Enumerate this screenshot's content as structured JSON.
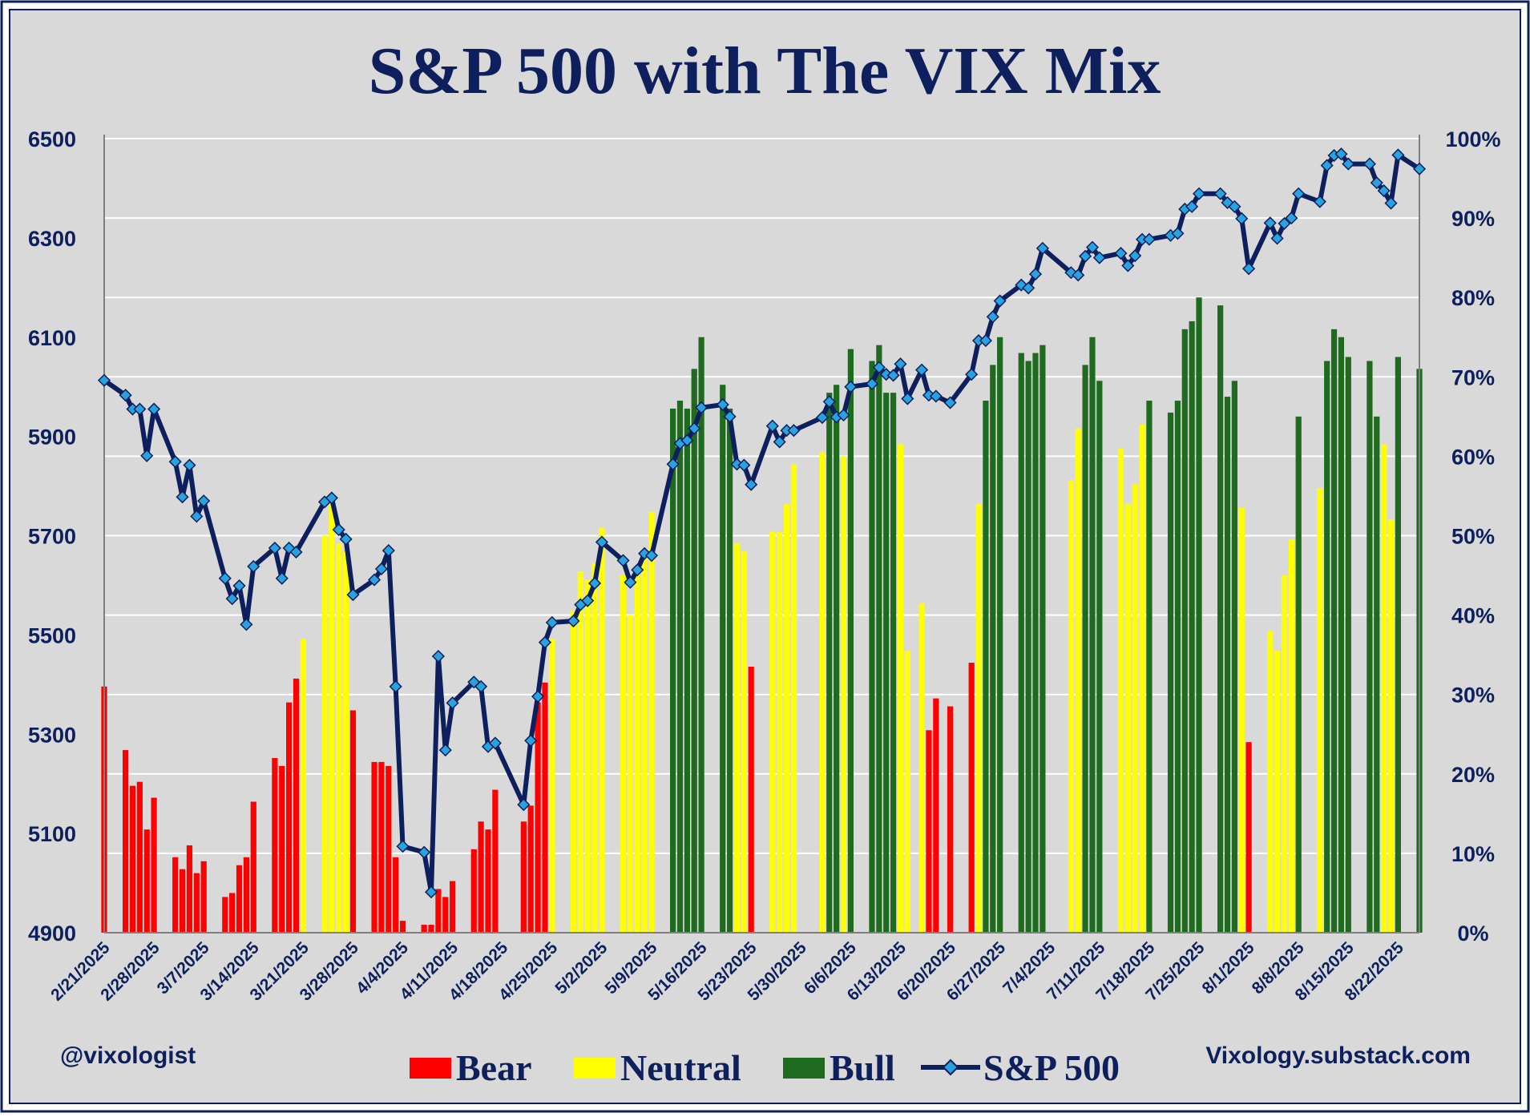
{
  "chart_data": {
    "type": "bar+line",
    "title": "S&P 500 with The VIX Mix",
    "left_axis": {
      "ticks": [
        "6500",
        "6300",
        "6100",
        "5900",
        "5700",
        "5500",
        "5300",
        "5100",
        "4900"
      ],
      "ylim": [
        4900,
        6500
      ]
    },
    "right_axis": {
      "ticks": [
        "100%",
        "90%",
        "80%",
        "70%",
        "60%",
        "50%",
        "40%",
        "30%",
        "20%",
        "10%",
        "0%"
      ],
      "ylim": [
        0,
        100
      ]
    },
    "grid": true,
    "x_tick_labels": [
      "2/21/2025",
      "2/28/2025",
      "3/7/2025",
      "3/14/2025",
      "3/21/2025",
      "3/28/2025",
      "4/4/2025",
      "4/11/2025",
      "4/18/2025",
      "4/25/2025",
      "5/2/2025",
      "5/9/2025",
      "5/16/2025",
      "5/23/2025",
      "5/30/2025",
      "6/6/2025",
      "6/13/2025",
      "6/20/2025",
      "6/27/2025",
      "7/4/2025",
      "7/11/2025",
      "7/18/2025",
      "7/25/2025",
      "8/1/2025",
      "8/8/2025",
      "8/15/2025",
      "8/22/2025"
    ],
    "regime_colors": {
      "Bear": "#ff0000",
      "Neutral": "#ffff00",
      "Bull": "#1e6a1e"
    },
    "line_color": "#0d1f5c",
    "marker_color": "#29a3e0",
    "legend": [
      {
        "name": "Bear",
        "color": "#ff0000",
        "kind": "bar"
      },
      {
        "name": "Neutral",
        "color": "#ffff00",
        "kind": "bar"
      },
      {
        "name": "Bull",
        "color": "#1e6a1e",
        "kind": "bar"
      },
      {
        "name": "S&P 500",
        "color": "#0d1f5c",
        "kind": "line"
      }
    ],
    "legend_position": "bottom",
    "bars": [
      {
        "d": 0,
        "v": 31,
        "r": "Bear"
      },
      {
        "d": 3,
        "v": 23,
        "r": "Bear"
      },
      {
        "d": 4,
        "v": 18.5,
        "r": "Bear"
      },
      {
        "d": 5,
        "v": 19,
        "r": "Bear"
      },
      {
        "d": 6,
        "v": 13,
        "r": "Bear"
      },
      {
        "d": 7,
        "v": 17,
        "r": "Bear"
      },
      {
        "d": 10,
        "v": 9.5,
        "r": "Bear"
      },
      {
        "d": 11,
        "v": 8,
        "r": "Bear"
      },
      {
        "d": 12,
        "v": 11,
        "r": "Bear"
      },
      {
        "d": 13,
        "v": 7.5,
        "r": "Bear"
      },
      {
        "d": 14,
        "v": 9,
        "r": "Bear"
      },
      {
        "d": 17,
        "v": 4.5,
        "r": "Bear"
      },
      {
        "d": 18,
        "v": 5,
        "r": "Bear"
      },
      {
        "d": 19,
        "v": 8.5,
        "r": "Bear"
      },
      {
        "d": 20,
        "v": 9.5,
        "r": "Bear"
      },
      {
        "d": 21,
        "v": 16.5,
        "r": "Bear"
      },
      {
        "d": 24,
        "v": 22,
        "r": "Bear"
      },
      {
        "d": 25,
        "v": 21,
        "r": "Bear"
      },
      {
        "d": 26,
        "v": 29,
        "r": "Bear"
      },
      {
        "d": 27,
        "v": 32,
        "r": "Bear"
      },
      {
        "d": 28,
        "v": 37,
        "r": "Neutral"
      },
      {
        "d": 31,
        "v": 50,
        "r": "Neutral"
      },
      {
        "d": 32,
        "v": 54,
        "r": "Neutral"
      },
      {
        "d": 33,
        "v": 49,
        "r": "Neutral"
      },
      {
        "d": 34,
        "v": 48,
        "r": "Neutral"
      },
      {
        "d": 35,
        "v": 28,
        "r": "Bear"
      },
      {
        "d": 38,
        "v": 21.5,
        "r": "Bear"
      },
      {
        "d": 39,
        "v": 21.5,
        "r": "Bear"
      },
      {
        "d": 40,
        "v": 21,
        "r": "Bear"
      },
      {
        "d": 41,
        "v": 9.5,
        "r": "Bear"
      },
      {
        "d": 42,
        "v": 1.5,
        "r": "Bear"
      },
      {
        "d": 45,
        "v": 1,
        "r": "Bear"
      },
      {
        "d": 46,
        "v": 1,
        "r": "Bear"
      },
      {
        "d": 47,
        "v": 5.5,
        "r": "Bear"
      },
      {
        "d": 48,
        "v": 4.5,
        "r": "Bear"
      },
      {
        "d": 49,
        "v": 6.5,
        "r": "Bear"
      },
      {
        "d": 52,
        "v": 10.5,
        "r": "Bear"
      },
      {
        "d": 53,
        "v": 14,
        "r": "Bear"
      },
      {
        "d": 54,
        "v": 13,
        "r": "Bear"
      },
      {
        "d": 55,
        "v": 18,
        "r": "Bear"
      },
      {
        "d": 59,
        "v": 14,
        "r": "Bear"
      },
      {
        "d": 60,
        "v": 16,
        "r": "Bear"
      },
      {
        "d": 61,
        "v": 29,
        "r": "Bear"
      },
      {
        "d": 62,
        "v": 31.5,
        "r": "Bear"
      },
      {
        "d": 63,
        "v": 37,
        "r": "Neutral"
      },
      {
        "d": 66,
        "v": 40.5,
        "r": "Neutral"
      },
      {
        "d": 67,
        "v": 45.5,
        "r": "Neutral"
      },
      {
        "d": 68,
        "v": 44.5,
        "r": "Neutral"
      },
      {
        "d": 69,
        "v": 46.5,
        "r": "Neutral"
      },
      {
        "d": 70,
        "v": 51,
        "r": "Neutral"
      },
      {
        "d": 73,
        "v": 45,
        "r": "Neutral"
      },
      {
        "d": 74,
        "v": 40,
        "r": "Neutral"
      },
      {
        "d": 75,
        "v": 45,
        "r": "Neutral"
      },
      {
        "d": 76,
        "v": 48,
        "r": "Neutral"
      },
      {
        "d": 77,
        "v": 53,
        "r": "Neutral"
      },
      {
        "d": 80,
        "v": 66,
        "r": "Bull"
      },
      {
        "d": 81,
        "v": 67,
        "r": "Bull"
      },
      {
        "d": 82,
        "v": 66,
        "r": "Bull"
      },
      {
        "d": 83,
        "v": 71,
        "r": "Bull"
      },
      {
        "d": 84,
        "v": 75,
        "r": "Bull"
      },
      {
        "d": 87,
        "v": 69,
        "r": "Bull"
      },
      {
        "d": 88,
        "v": 66,
        "r": "Bull"
      },
      {
        "d": 89,
        "v": 49,
        "r": "Neutral"
      },
      {
        "d": 90,
        "v": 48,
        "r": "Neutral"
      },
      {
        "d": 91,
        "v": 33.5,
        "r": "Bear"
      },
      {
        "d": 94,
        "v": 50.5,
        "r": "Neutral"
      },
      {
        "d": 95,
        "v": 50.5,
        "r": "Neutral"
      },
      {
        "d": 96,
        "v": 54,
        "r": "Neutral"
      },
      {
        "d": 97,
        "v": 59,
        "r": "Neutral"
      },
      {
        "d": 101,
        "v": 60.5,
        "r": "Neutral"
      },
      {
        "d": 102,
        "v": 68,
        "r": "Bull"
      },
      {
        "d": 103,
        "v": 69,
        "r": "Bull"
      },
      {
        "d": 104,
        "v": 60,
        "r": "Neutral"
      },
      {
        "d": 105,
        "v": 73.5,
        "r": "Bull"
      },
      {
        "d": 108,
        "v": 72,
        "r": "Bull"
      },
      {
        "d": 109,
        "v": 74,
        "r": "Bull"
      },
      {
        "d": 110,
        "v": 68,
        "r": "Bull"
      },
      {
        "d": 111,
        "v": 68,
        "r": "Bull"
      },
      {
        "d": 112,
        "v": 61.5,
        "r": "Neutral"
      },
      {
        "d": 113,
        "v": 35.5,
        "r": "Neutral"
      },
      {
        "d": 115,
        "v": 41.5,
        "r": "Neutral"
      },
      {
        "d": 116,
        "v": 25.5,
        "r": "Bear"
      },
      {
        "d": 117,
        "v": 29.5,
        "r": "Bear"
      },
      {
        "d": 119,
        "v": 28.5,
        "r": "Bear"
      },
      {
        "d": 122,
        "v": 34,
        "r": "Bear"
      },
      {
        "d": 123,
        "v": 54,
        "r": "Neutral"
      },
      {
        "d": 124,
        "v": 67,
        "r": "Bull"
      },
      {
        "d": 125,
        "v": 71.5,
        "r": "Bull"
      },
      {
        "d": 126,
        "v": 75,
        "r": "Bull"
      },
      {
        "d": 129,
        "v": 73,
        "r": "Bull"
      },
      {
        "d": 130,
        "v": 72,
        "r": "Bull"
      },
      {
        "d": 131,
        "v": 73,
        "r": "Bull"
      },
      {
        "d": 132,
        "v": 74,
        "r": "Bull"
      },
      {
        "d": 136,
        "v": 57,
        "r": "Neutral"
      },
      {
        "d": 137,
        "v": 63.5,
        "r": "Neutral"
      },
      {
        "d": 138,
        "v": 71.5,
        "r": "Bull"
      },
      {
        "d": 139,
        "v": 75,
        "r": "Bull"
      },
      {
        "d": 140,
        "v": 69.5,
        "r": "Bull"
      },
      {
        "d": 143,
        "v": 61,
        "r": "Neutral"
      },
      {
        "d": 144,
        "v": 54,
        "r": "Neutral"
      },
      {
        "d": 145,
        "v": 56.5,
        "r": "Neutral"
      },
      {
        "d": 146,
        "v": 64,
        "r": "Neutral"
      },
      {
        "d": 147,
        "v": 67,
        "r": "Bull"
      },
      {
        "d": 150,
        "v": 65.5,
        "r": "Bull"
      },
      {
        "d": 151,
        "v": 67,
        "r": "Bull"
      },
      {
        "d": 152,
        "v": 76,
        "r": "Bull"
      },
      {
        "d": 153,
        "v": 77,
        "r": "Bull"
      },
      {
        "d": 154,
        "v": 80,
        "r": "Bull"
      },
      {
        "d": 157,
        "v": 79,
        "r": "Bull"
      },
      {
        "d": 158,
        "v": 67.5,
        "r": "Bull"
      },
      {
        "d": 159,
        "v": 69.5,
        "r": "Bull"
      },
      {
        "d": 160,
        "v": 53.5,
        "r": "Neutral"
      },
      {
        "d": 161,
        "v": 24,
        "r": "Bear"
      },
      {
        "d": 164,
        "v": 38,
        "r": "Neutral"
      },
      {
        "d": 165,
        "v": 35.5,
        "r": "Neutral"
      },
      {
        "d": 166,
        "v": 45,
        "r": "Neutral"
      },
      {
        "d": 167,
        "v": 49.5,
        "r": "Neutral"
      },
      {
        "d": 168,
        "v": 65,
        "r": "Bull"
      },
      {
        "d": 171,
        "v": 56,
        "r": "Neutral"
      },
      {
        "d": 172,
        "v": 72,
        "r": "Bull"
      },
      {
        "d": 173,
        "v": 76,
        "r": "Bull"
      },
      {
        "d": 174,
        "v": 75,
        "r": "Bull"
      },
      {
        "d": 175,
        "v": 72.5,
        "r": "Bull"
      },
      {
        "d": 178,
        "v": 72,
        "r": "Bull"
      },
      {
        "d": 179,
        "v": 65,
        "r": "Bull"
      },
      {
        "d": 180,
        "v": 61.5,
        "r": "Neutral"
      },
      {
        "d": 181,
        "v": 52,
        "r": "Neutral"
      },
      {
        "d": 182,
        "v": 72.5,
        "r": "Bull"
      },
      {
        "d": 185,
        "v": 71,
        "r": "Bull"
      }
    ],
    "sp500": [
      {
        "d": 0,
        "v": 6013
      },
      {
        "d": 3,
        "v": 5983
      },
      {
        "d": 4,
        "v": 5955
      },
      {
        "d": 5,
        "v": 5955
      },
      {
        "d": 6,
        "v": 5861
      },
      {
        "d": 7,
        "v": 5955
      },
      {
        "d": 10,
        "v": 5849
      },
      {
        "d": 11,
        "v": 5778
      },
      {
        "d": 12,
        "v": 5842
      },
      {
        "d": 13,
        "v": 5739
      },
      {
        "d": 14,
        "v": 5770
      },
      {
        "d": 17,
        "v": 5614
      },
      {
        "d": 18,
        "v": 5573
      },
      {
        "d": 19,
        "v": 5599
      },
      {
        "d": 20,
        "v": 5521
      },
      {
        "d": 21,
        "v": 5638
      },
      {
        "d": 24,
        "v": 5675
      },
      {
        "d": 25,
        "v": 5614
      },
      {
        "d": 26,
        "v": 5675
      },
      {
        "d": 27,
        "v": 5667
      },
      {
        "d": 31,
        "v": 5768
      },
      {
        "d": 32,
        "v": 5776
      },
      {
        "d": 33,
        "v": 5712
      },
      {
        "d": 34,
        "v": 5693
      },
      {
        "d": 35,
        "v": 5581
      },
      {
        "d": 38,
        "v": 5611
      },
      {
        "d": 39,
        "v": 5633
      },
      {
        "d": 40,
        "v": 5670
      },
      {
        "d": 41,
        "v": 5396
      },
      {
        "d": 42,
        "v": 5074
      },
      {
        "d": 45,
        "v": 5062
      },
      {
        "d": 46,
        "v": 4982
      },
      {
        "d": 47,
        "v": 5457
      },
      {
        "d": 48,
        "v": 5268
      },
      {
        "d": 49,
        "v": 5363
      },
      {
        "d": 52,
        "v": 5405
      },
      {
        "d": 53,
        "v": 5396
      },
      {
        "d": 54,
        "v": 5275
      },
      {
        "d": 55,
        "v": 5282
      },
      {
        "d": 59,
        "v": 5158
      },
      {
        "d": 60,
        "v": 5287
      },
      {
        "d": 61,
        "v": 5376
      },
      {
        "d": 62,
        "v": 5485
      },
      {
        "d": 63,
        "v": 5525
      },
      {
        "d": 66,
        "v": 5528
      },
      {
        "d": 67,
        "v": 5561
      },
      {
        "d": 68,
        "v": 5569
      },
      {
        "d": 69,
        "v": 5604
      },
      {
        "d": 70,
        "v": 5687
      },
      {
        "d": 73,
        "v": 5650
      },
      {
        "d": 74,
        "v": 5606
      },
      {
        "d": 75,
        "v": 5631
      },
      {
        "d": 76,
        "v": 5664
      },
      {
        "d": 77,
        "v": 5660
      },
      {
        "d": 80,
        "v": 5844
      },
      {
        "d": 81,
        "v": 5886
      },
      {
        "d": 82,
        "v": 5892
      },
      {
        "d": 83,
        "v": 5916
      },
      {
        "d": 84,
        "v": 5958
      },
      {
        "d": 87,
        "v": 5964
      },
      {
        "d": 88,
        "v": 5940
      },
      {
        "d": 89,
        "v": 5844
      },
      {
        "d": 90,
        "v": 5842
      },
      {
        "d": 91,
        "v": 5803
      },
      {
        "d": 94,
        "v": 5921
      },
      {
        "d": 95,
        "v": 5889
      },
      {
        "d": 96,
        "v": 5912
      },
      {
        "d": 97,
        "v": 5912
      },
      {
        "d": 101,
        "v": 5938
      },
      {
        "d": 102,
        "v": 5970
      },
      {
        "d": 103,
        "v": 5939
      },
      {
        "d": 104,
        "v": 5943
      },
      {
        "d": 105,
        "v": 6000
      },
      {
        "d": 108,
        "v": 6006
      },
      {
        "d": 109,
        "v": 6039
      },
      {
        "d": 110,
        "v": 6025
      },
      {
        "d": 111,
        "v": 6023
      },
      {
        "d": 112,
        "v": 6046
      },
      {
        "d": 113,
        "v": 5976
      },
      {
        "d": 115,
        "v": 6034
      },
      {
        "d": 116,
        "v": 5983
      },
      {
        "d": 117,
        "v": 5981
      },
      {
        "d": 119,
        "v": 5968
      },
      {
        "d": 122,
        "v": 6025
      },
      {
        "d": 123,
        "v": 6093
      },
      {
        "d": 124,
        "v": 6093
      },
      {
        "d": 125,
        "v": 6141
      },
      {
        "d": 126,
        "v": 6173
      },
      {
        "d": 129,
        "v": 6205
      },
      {
        "d": 130,
        "v": 6199
      },
      {
        "d": 131,
        "v": 6227
      },
      {
        "d": 132,
        "v": 6279
      },
      {
        "d": 136,
        "v": 6230
      },
      {
        "d": 137,
        "v": 6225
      },
      {
        "d": 138,
        "v": 6263
      },
      {
        "d": 139,
        "v": 6281
      },
      {
        "d": 140,
        "v": 6260
      },
      {
        "d": 143,
        "v": 6269
      },
      {
        "d": 144,
        "v": 6244
      },
      {
        "d": 145,
        "v": 6264
      },
      {
        "d": 146,
        "v": 6297
      },
      {
        "d": 147,
        "v": 6297
      },
      {
        "d": 150,
        "v": 6305
      },
      {
        "d": 151,
        "v": 6309
      },
      {
        "d": 152,
        "v": 6358
      },
      {
        "d": 153,
        "v": 6363
      },
      {
        "d": 154,
        "v": 6389
      },
      {
        "d": 157,
        "v": 6389
      },
      {
        "d": 158,
        "v": 6371
      },
      {
        "d": 159,
        "v": 6363
      },
      {
        "d": 160,
        "v": 6339
      },
      {
        "d": 161,
        "v": 6238
      },
      {
        "d": 164,
        "v": 6330
      },
      {
        "d": 165,
        "v": 6299
      },
      {
        "d": 166,
        "v": 6329
      },
      {
        "d": 167,
        "v": 6340
      },
      {
        "d": 168,
        "v": 6389
      },
      {
        "d": 171,
        "v": 6373
      },
      {
        "d": 172,
        "v": 6446
      },
      {
        "d": 173,
        "v": 6466
      },
      {
        "d": 174,
        "v": 6469
      },
      {
        "d": 175,
        "v": 6449
      },
      {
        "d": 178,
        "v": 6449
      },
      {
        "d": 179,
        "v": 6411
      },
      {
        "d": 180,
        "v": 6395
      },
      {
        "d": 181,
        "v": 6370
      },
      {
        "d": 182,
        "v": 6467
      },
      {
        "d": 185,
        "v": 6439
      }
    ],
    "footer_left": "@vixologist",
    "footer_right": "Vixology.substack.com"
  }
}
